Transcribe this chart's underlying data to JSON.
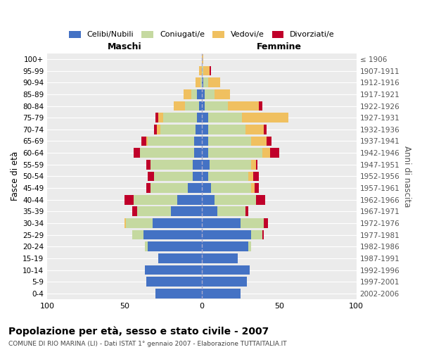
{
  "age_groups": [
    "0-4",
    "5-9",
    "10-14",
    "15-19",
    "20-24",
    "25-29",
    "30-34",
    "35-39",
    "40-44",
    "45-49",
    "50-54",
    "55-59",
    "60-64",
    "65-69",
    "70-74",
    "75-79",
    "80-84",
    "85-89",
    "90-94",
    "95-99",
    "100+"
  ],
  "birth_years": [
    "2002-2006",
    "1997-2001",
    "1992-1996",
    "1987-1991",
    "1982-1986",
    "1977-1981",
    "1972-1976",
    "1967-1971",
    "1962-1966",
    "1957-1961",
    "1952-1956",
    "1947-1951",
    "1942-1946",
    "1937-1941",
    "1932-1936",
    "1927-1931",
    "1922-1926",
    "1917-1921",
    "1912-1916",
    "1907-1911",
    "≤ 1906"
  ],
  "colors": {
    "celibi": "#4472C4",
    "coniugati": "#C5D9A0",
    "vedovi": "#F0C060",
    "divorziati": "#C0002A"
  },
  "maschi": {
    "celibi": [
      30,
      36,
      37,
      28,
      35,
      38,
      32,
      20,
      16,
      9,
      6,
      6,
      5,
      5,
      4,
      3,
      2,
      3,
      0,
      0,
      0
    ],
    "coniugati": [
      0,
      0,
      0,
      0,
      2,
      7,
      17,
      22,
      28,
      24,
      25,
      27,
      35,
      30,
      23,
      22,
      9,
      4,
      1,
      0,
      0
    ],
    "vedovi": [
      0,
      0,
      0,
      0,
      0,
      0,
      1,
      0,
      0,
      0,
      0,
      0,
      0,
      1,
      2,
      3,
      7,
      5,
      3,
      2,
      0
    ],
    "divorziati": [
      0,
      0,
      0,
      0,
      0,
      0,
      0,
      3,
      6,
      3,
      4,
      3,
      4,
      3,
      2,
      2,
      0,
      0,
      0,
      0,
      0
    ]
  },
  "femmine": {
    "celibi": [
      25,
      29,
      31,
      23,
      30,
      32,
      25,
      10,
      8,
      6,
      4,
      5,
      4,
      4,
      4,
      4,
      2,
      2,
      1,
      0,
      0
    ],
    "coniugati": [
      0,
      0,
      0,
      0,
      2,
      7,
      15,
      18,
      27,
      26,
      26,
      27,
      35,
      28,
      24,
      22,
      15,
      6,
      3,
      1,
      0
    ],
    "vedovi": [
      0,
      0,
      0,
      0,
      0,
      0,
      0,
      0,
      0,
      2,
      3,
      3,
      5,
      10,
      12,
      30,
      20,
      10,
      8,
      4,
      1
    ],
    "divorziati": [
      0,
      0,
      0,
      0,
      0,
      1,
      3,
      2,
      6,
      3,
      4,
      1,
      6,
      3,
      2,
      0,
      2,
      0,
      0,
      1,
      0
    ]
  },
  "title": "Popolazione per età, sesso e stato civile - 2007",
  "subtitle": "COMUNE DI RIO MARINA (LI) - Dati ISTAT 1° gennaio 2007 - Elaborazione TUTTAITALIA.IT",
  "xlabel_left": "Maschi",
  "xlabel_right": "Femmine",
  "ylabel_left": "Fasce di età",
  "ylabel_right": "Anni di nascita",
  "xlim": 100,
  "legend_labels": [
    "Celibi/Nubili",
    "Coniugati/e",
    "Vedovi/e",
    "Divorziati/e"
  ],
  "background_color": "#ebebeb"
}
